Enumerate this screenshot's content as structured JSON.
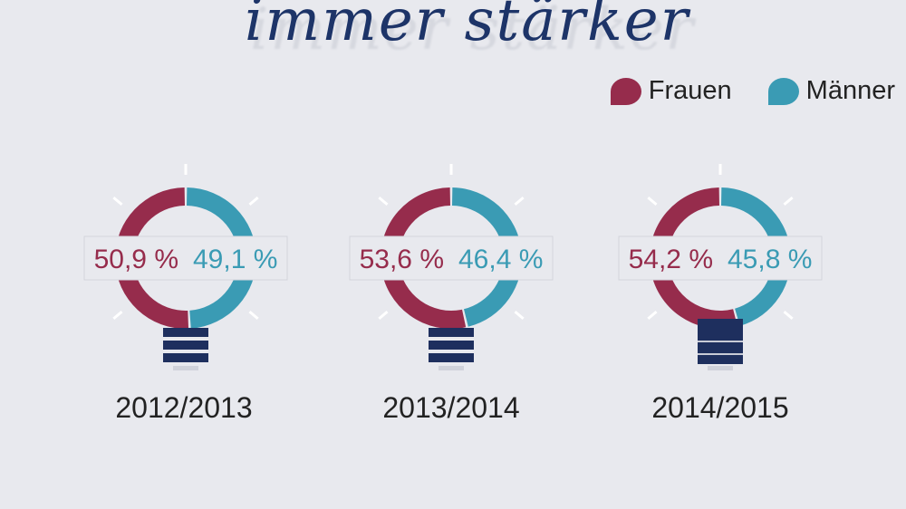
{
  "title": "immer stärker",
  "legend": {
    "frauen": "Frauen",
    "maenner": "Männer"
  },
  "colors": {
    "frauen": "#962c4c",
    "maenner": "#3a9bb4",
    "navy": "#1e2f5e",
    "background": "#e8e9ee"
  },
  "chart_data": {
    "type": "pie",
    "variant": "donut",
    "series_names": [
      "Frauen",
      "Männer"
    ],
    "categories": [
      "2012/2013",
      "2013/2014",
      "2014/2015"
    ],
    "series": [
      {
        "name": "Frauen",
        "values": [
          50.9,
          53.6,
          54.2
        ],
        "labels": [
          "50,9 %",
          "53,6 %",
          "54,2 %"
        ]
      },
      {
        "name": "Männer",
        "values": [
          49.1,
          46.4,
          45.8
        ],
        "labels": [
          "49,1 %",
          "46,4 %",
          "45,8 %"
        ]
      }
    ],
    "legend_position": "top-right"
  }
}
